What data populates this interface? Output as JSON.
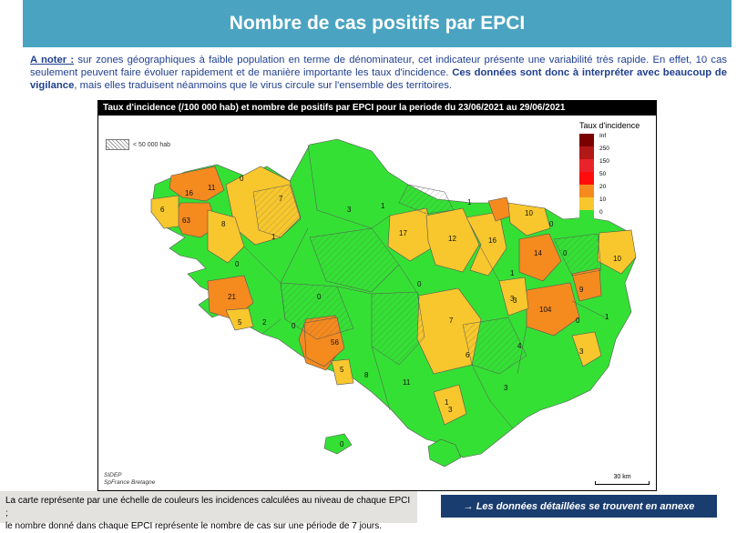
{
  "header": {
    "title": "Nombre de cas positifs par EPCI"
  },
  "note": {
    "lead": "A noter :",
    "text1": " sur zones géographiques à faible population en terme de dénominateur, cet indicateur présente une variabilité très rapide. En effet, 10 cas seulement peuvent faire évoluer rapidement et de manière importante les taux d'incidence. ",
    "bold": "Ces données sont donc à interpréter avec beaucoup de vigilance",
    "text2": ", mais elles traduisent néanmoins que le virus circule sur l'ensemble des territoires."
  },
  "map": {
    "title": "Taux d'incidence (/100 000 hab) et nombre de positifs par EPCI pour la periode du 23/06/2021 au 29/06/2021",
    "pop_legend_label": "< 50 000 hab",
    "legend_title": "Taux d'incidence",
    "legend": [
      {
        "label": "Inf",
        "color": "#7b0000"
      },
      {
        "label": "250",
        "color": "#b21818"
      },
      {
        "label": "150",
        "color": "#e8242a"
      },
      {
        "label": "50",
        "color": "#ff0d0d"
      },
      {
        "label": "20",
        "color": "#f58a1f"
      },
      {
        "label": "10",
        "color": "#f7c72d"
      },
      {
        "label": "0",
        "color": "#35e035"
      }
    ],
    "source_line1": "SIDEP",
    "source_line2": "SpFrance Bretagne",
    "scale_label": "30 km",
    "epci_counts": [
      "16",
      "11",
      "0",
      "7",
      "6",
      "63",
      "8",
      "1",
      "3",
      "0",
      "0",
      "21",
      "5",
      "2",
      "0",
      "56",
      "5",
      "8",
      "11",
      "1",
      "0",
      "17",
      "12",
      "16",
      "0",
      "1",
      "1",
      "7",
      "6",
      "4",
      "3",
      "1",
      "3",
      "10",
      "0",
      "14",
      "0",
      "10",
      "9",
      "104",
      "3",
      "0",
      "3",
      "1",
      "3"
    ]
  },
  "footnote": {
    "line1": "La carte représente par une échelle de couleurs les incidences calculées au niveau de chaque EPCI ;",
    "line2": "le nombre donné dans chaque EPCI représente le nombre de cas sur une période de 7 jours."
  },
  "annex": {
    "label": "→ Les données détaillées se trouvent en annexe"
  }
}
